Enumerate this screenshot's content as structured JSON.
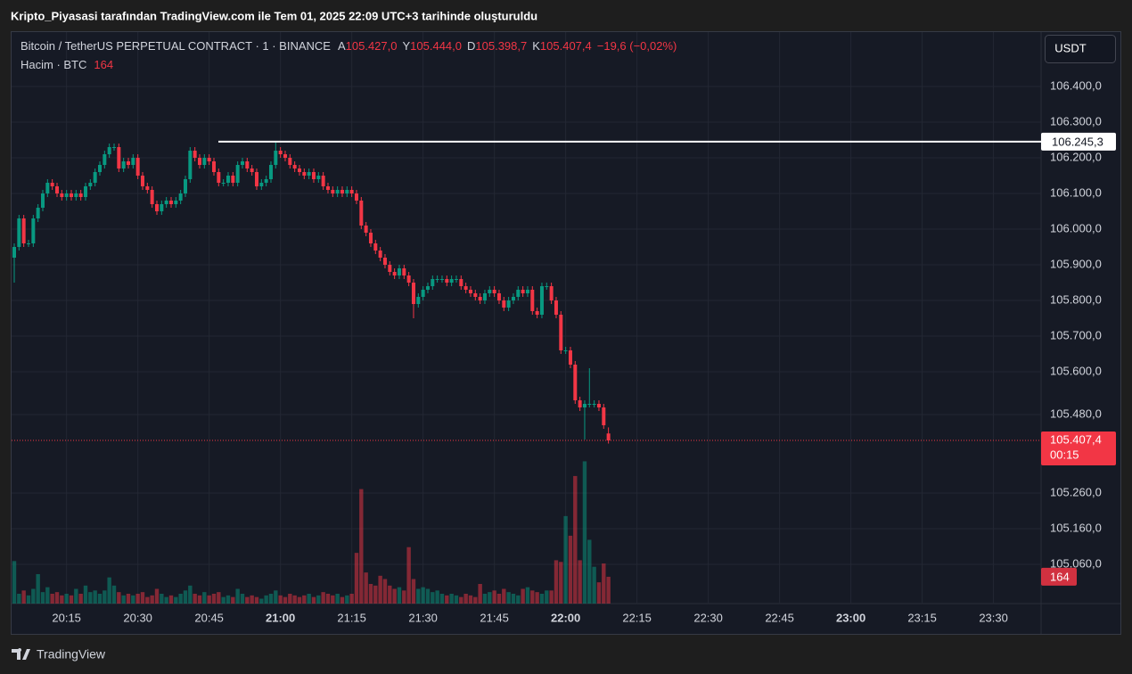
{
  "caption": "Kripto_Piyasasi tarafından TradingView.com ile Tem 01, 2025 22:09 UTC+3 tarihinde oluşturuldu",
  "chart_data": {
    "type": "candlestick",
    "symbol": "Bitcoin / TetherUS PERPETUAL CONTRACT · 1 · BINANCE",
    "ohlc_legend": [
      {
        "key": "A",
        "label": "105.427,0"
      },
      {
        "key": "Y",
        "label": "105.444,0"
      },
      {
        "key": "D",
        "label": "105.398,7"
      },
      {
        "key": "K",
        "label": "105.407,4"
      }
    ],
    "change_label": "−19,6 (−0,02%)",
    "volume_title": "Hacim · BTC",
    "currency": "USDT",
    "open": [
      105920,
      105950,
      106030,
      105960,
      105960,
      106030,
      106060,
      106100,
      106130,
      106120,
      106100,
      106090,
      106100,
      106090,
      106100,
      106090,
      106120,
      106130,
      106160,
      106180,
      106210,
      106230,
      106230,
      106170,
      106190,
      106180,
      106200,
      106150,
      106120,
      106110,
      106070,
      106050,
      106070,
      106080,
      106070,
      106080,
      106100,
      106140,
      106220,
      106200,
      106180,
      106200,
      106190,
      106160,
      106130,
      106130,
      106150,
      106130,
      106180,
      106190,
      106170,
      106160,
      106120,
      106130,
      106140,
      106180,
      106220,
      106210,
      106200,
      106180,
      106170,
      106160,
      106150,
      106160,
      106140,
      106150,
      106120,
      106110,
      106100,
      106110,
      106100,
      106110,
      106100,
      106080,
      106010,
      105990,
      105960,
      105940,
      105920,
      105900,
      105880,
      105870,
      105890,
      105870,
      105850,
      105790,
      105810,
      105830,
      105840,
      105860,
      105860,
      105860,
      105850,
      105860,
      105860,
      105840,
      105830,
      105820,
      105810,
      105800,
      105820,
      105830,
      105820,
      105800,
      105780,
      105800,
      105810,
      105830,
      105820,
      105830,
      105770,
      105760,
      105840,
      105840,
      105800,
      105760,
      105660,
      105660,
      105620,
      105520,
      105500,
      105510,
      105510,
      105510,
      105500,
      105427
    ],
    "high": [
      105960,
      106040,
      106040,
      105970,
      106040,
      106070,
      106110,
      106140,
      106140,
      106130,
      106110,
      106110,
      106110,
      106110,
      106110,
      106130,
      106140,
      106170,
      106190,
      106220,
      106240,
      106240,
      106240,
      106200,
      106200,
      106210,
      106210,
      106160,
      106130,
      106120,
      106080,
      106080,
      106090,
      106090,
      106090,
      106110,
      106150,
      106230,
      106230,
      106210,
      106210,
      106210,
      106200,
      106170,
      106140,
      106160,
      106160,
      106190,
      106200,
      106200,
      106180,
      106170,
      106140,
      106150,
      106190,
      106245,
      106230,
      106220,
      106210,
      106190,
      106180,
      106170,
      106170,
      106170,
      106160,
      106160,
      106130,
      106120,
      106120,
      106120,
      106120,
      106120,
      106110,
      106090,
      106020,
      106000,
      105970,
      105950,
      105930,
      105910,
      105890,
      105900,
      105900,
      105880,
      105860,
      105820,
      105840,
      105850,
      105870,
      105870,
      105870,
      105870,
      105870,
      105870,
      105870,
      105850,
      105840,
      105830,
      105820,
      105830,
      105840,
      105840,
      105830,
      105810,
      105810,
      105820,
      105840,
      105840,
      105840,
      105840,
      105780,
      105850,
      105850,
      105850,
      105810,
      105770,
      105670,
      105670,
      105630,
      105530,
      105520,
      105610,
      105520,
      105520,
      105510,
      105444
    ],
    "low": [
      105850,
      105940,
      105950,
      105950,
      105950,
      106020,
      106050,
      106090,
      106110,
      106090,
      106080,
      106080,
      106080,
      106080,
      106080,
      106080,
      106110,
      106120,
      106150,
      106170,
      106200,
      106220,
      106160,
      106160,
      106170,
      106170,
      106140,
      106110,
      106100,
      106060,
      106040,
      106040,
      106060,
      106060,
      106060,
      106070,
      106090,
      106130,
      106190,
      106170,
      106170,
      106180,
      106150,
      106120,
      106120,
      106120,
      106120,
      106120,
      106170,
      106160,
      106150,
      106110,
      106110,
      106120,
      106130,
      106170,
      106200,
      106190,
      106170,
      106160,
      106150,
      106140,
      106140,
      106130,
      106130,
      106110,
      106100,
      106090,
      106090,
      106090,
      106090,
      106090,
      106070,
      106000,
      105980,
      105950,
      105930,
      105910,
      105890,
      105870,
      105860,
      105860,
      105860,
      105840,
      105750,
      105780,
      105800,
      105820,
      105830,
      105850,
      105850,
      105840,
      105840,
      105850,
      105830,
      105820,
      105810,
      105800,
      105790,
      105790,
      105810,
      105810,
      105790,
      105770,
      105770,
      105790,
      105800,
      105810,
      105810,
      105760,
      105750,
      105750,
      105830,
      105790,
      105750,
      105650,
      105650,
      105610,
      105510,
      105490,
      105410,
      105500,
      105500,
      105490,
      105440,
      105398.7
    ],
    "close": [
      105950,
      106030,
      105960,
      105960,
      106030,
      106060,
      106100,
      106130,
      106120,
      106100,
      106090,
      106100,
      106090,
      106100,
      106090,
      106120,
      106130,
      106160,
      106180,
      106210,
      106230,
      106230,
      106170,
      106190,
      106180,
      106200,
      106150,
      106120,
      106110,
      106070,
      106050,
      106070,
      106080,
      106070,
      106080,
      106100,
      106140,
      106220,
      106200,
      106180,
      106200,
      106190,
      106160,
      106130,
      106130,
      106150,
      106130,
      106180,
      106190,
      106170,
      106160,
      106120,
      106130,
      106140,
      106180,
      106220,
      106210,
      106200,
      106180,
      106170,
      106160,
      106150,
      106160,
      106140,
      106150,
      106120,
      106110,
      106100,
      106110,
      106100,
      106110,
      106100,
      106080,
      106010,
      105990,
      105960,
      105940,
      105920,
      105900,
      105880,
      105870,
      105890,
      105870,
      105850,
      105790,
      105810,
      105830,
      105840,
      105860,
      105860,
      105860,
      105850,
      105860,
      105860,
      105840,
      105830,
      105820,
      105810,
      105800,
      105820,
      105830,
      105820,
      105800,
      105780,
      105800,
      105810,
      105830,
      105820,
      105830,
      105770,
      105760,
      105840,
      105840,
      105800,
      105760,
      105660,
      105660,
      105620,
      105520,
      105500,
      105510,
      105510,
      105510,
      105500,
      105450,
      105407.4
    ],
    "volume": [
      260,
      60,
      80,
      50,
      90,
      180,
      70,
      100,
      60,
      70,
      50,
      60,
      50,
      90,
      60,
      110,
      70,
      80,
      60,
      80,
      160,
      110,
      70,
      50,
      60,
      50,
      60,
      70,
      40,
      50,
      90,
      60,
      40,
      50,
      40,
      60,
      80,
      110,
      60,
      50,
      70,
      50,
      60,
      70,
      40,
      50,
      40,
      90,
      60,
      40,
      50,
      40,
      30,
      50,
      60,
      80,
      50,
      40,
      60,
      50,
      40,
      50,
      60,
      40,
      50,
      70,
      60,
      50,
      60,
      40,
      50,
      60,
      310,
      700,
      190,
      120,
      110,
      170,
      150,
      110,
      90,
      100,
      80,
      345,
      150,
      90,
      100,
      90,
      70,
      80,
      60,
      50,
      60,
      50,
      40,
      60,
      50,
      40,
      120,
      60,
      70,
      80,
      60,
      90,
      70,
      60,
      50,
      90,
      100,
      80,
      70,
      60,
      80,
      80,
      265,
      255,
      535,
      415,
      780,
      265,
      870,
      390,
      225,
      130,
      245,
      164
    ],
    "up_color": "#089981",
    "down_color": "#f23645",
    "ylim": [
      104950,
      106555
    ],
    "yticks": [
      {
        "value": 106400,
        "label": "106.400,0"
      },
      {
        "value": 106300,
        "label": "106.300,0"
      },
      {
        "value": 106200,
        "label": "106.200,0"
      },
      {
        "value": 106100,
        "label": "106.100,0"
      },
      {
        "value": 106000,
        "label": "106.000,0"
      },
      {
        "value": 105900,
        "label": "105.900,0"
      },
      {
        "value": 105800,
        "label": "105.800,0"
      },
      {
        "value": 105700,
        "label": "105.700,0"
      },
      {
        "value": 105600,
        "label": "105.600,0"
      },
      {
        "value": 105480,
        "label": "105.480,0"
      },
      {
        "value": 105260,
        "label": "105.260,0"
      },
      {
        "value": 105160,
        "label": "105.160,0"
      },
      {
        "value": 105060,
        "label": "105.060,0"
      }
    ],
    "volume_lim": [
      0,
      3500
    ],
    "x_labels": [
      "20:15",
      "20:30",
      "20:45",
      "21:00",
      "21:15",
      "21:30",
      "21:45",
      "22:00",
      "22:15",
      "22:30",
      "22:45",
      "23:00",
      "23:15",
      "23:30"
    ],
    "hline": {
      "value": 106245.3,
      "label": "106.245,3"
    },
    "last_price_label": "105.407,4",
    "countdown": "00:15",
    "grid": true
  },
  "footer": "TradingView"
}
